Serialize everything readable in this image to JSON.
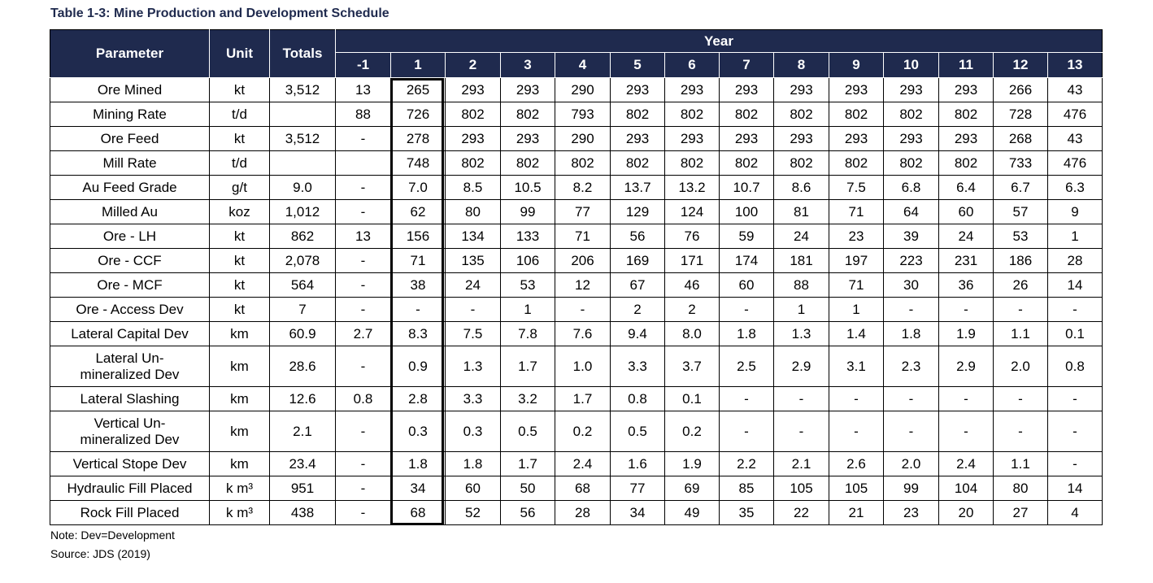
{
  "title": "Table 1-3: Mine Production and Development Schedule",
  "headers": {
    "parameter": "Parameter",
    "unit": "Unit",
    "totals": "Totals",
    "year": "Year",
    "years": [
      "-1",
      "1",
      "2",
      "3",
      "4",
      "5",
      "6",
      "7",
      "8",
      "9",
      "10",
      "11",
      "12",
      "13"
    ]
  },
  "rows": [
    {
      "parameter": "Ore Mined",
      "unit": "kt",
      "totals": "3,512",
      "values": [
        "13",
        "265",
        "293",
        "293",
        "290",
        "293",
        "293",
        "293",
        "293",
        "293",
        "293",
        "293",
        "266",
        "43"
      ]
    },
    {
      "parameter": "Mining Rate",
      "unit": "t/d",
      "totals": "",
      "values": [
        "88",
        "726",
        "802",
        "802",
        "793",
        "802",
        "802",
        "802",
        "802",
        "802",
        "802",
        "802",
        "728",
        "476"
      ]
    },
    {
      "parameter": "Ore Feed",
      "unit": "kt",
      "totals": "3,512",
      "values": [
        "-",
        "278",
        "293",
        "293",
        "290",
        "293",
        "293",
        "293",
        "293",
        "293",
        "293",
        "293",
        "268",
        "43"
      ]
    },
    {
      "parameter": "Mill Rate",
      "unit": "t/d",
      "totals": "",
      "values": [
        "",
        "748",
        "802",
        "802",
        "802",
        "802",
        "802",
        "802",
        "802",
        "802",
        "802",
        "802",
        "733",
        "476"
      ]
    },
    {
      "parameter": "Au Feed Grade",
      "unit": "g/t",
      "totals": "9.0",
      "values": [
        "-",
        "7.0",
        "8.5",
        "10.5",
        "8.2",
        "13.7",
        "13.2",
        "10.7",
        "8.6",
        "7.5",
        "6.8",
        "6.4",
        "6.7",
        "6.3"
      ]
    },
    {
      "parameter": "Milled Au",
      "unit": "koz",
      "totals": "1,012",
      "values": [
        "-",
        "62",
        "80",
        "99",
        "77",
        "129",
        "124",
        "100",
        "81",
        "71",
        "64",
        "60",
        "57",
        "9"
      ]
    },
    {
      "parameter": "Ore - LH",
      "unit": "kt",
      "totals": "862",
      "values": [
        "13",
        "156",
        "134",
        "133",
        "71",
        "56",
        "76",
        "59",
        "24",
        "23",
        "39",
        "24",
        "53",
        "1"
      ]
    },
    {
      "parameter": "Ore - CCF",
      "unit": "kt",
      "totals": "2,078",
      "values": [
        "-",
        "71",
        "135",
        "106",
        "206",
        "169",
        "171",
        "174",
        "181",
        "197",
        "223",
        "231",
        "186",
        "28"
      ]
    },
    {
      "parameter": "Ore - MCF",
      "unit": "kt",
      "totals": "564",
      "values": [
        "-",
        "38",
        "24",
        "53",
        "12",
        "67",
        "46",
        "60",
        "88",
        "71",
        "30",
        "36",
        "26",
        "14"
      ]
    },
    {
      "parameter": "Ore - Access Dev",
      "unit": "kt",
      "totals": "7",
      "values": [
        "-",
        "-",
        "-",
        "1",
        "-",
        "2",
        "2",
        "-",
        "1",
        "1",
        "-",
        "-",
        "-",
        "-"
      ]
    },
    {
      "parameter": "Lateral Capital Dev",
      "unit": "km",
      "totals": "60.9",
      "values": [
        "2.7",
        "8.3",
        "7.5",
        "7.8",
        "7.6",
        "9.4",
        "8.0",
        "1.8",
        "1.3",
        "1.4",
        "1.8",
        "1.9",
        "1.1",
        "0.1"
      ]
    },
    {
      "parameter": "Lateral Un-\nmineralized Dev",
      "unit": "km",
      "totals": "28.6",
      "values": [
        "-",
        "0.9",
        "1.3",
        "1.7",
        "1.0",
        "3.3",
        "3.7",
        "2.5",
        "2.9",
        "3.1",
        "2.3",
        "2.9",
        "2.0",
        "0.8"
      ]
    },
    {
      "parameter": "Lateral Slashing",
      "unit": "km",
      "totals": "12.6",
      "values": [
        "0.8",
        "2.8",
        "3.3",
        "3.2",
        "1.7",
        "0.8",
        "0.1",
        "-",
        "-",
        "-",
        "-",
        "-",
        "-",
        "-"
      ]
    },
    {
      "parameter": "Vertical Un-\nmineralized Dev",
      "unit": "km",
      "totals": "2.1",
      "values": [
        "-",
        "0.3",
        "0.3",
        "0.5",
        "0.2",
        "0.5",
        "0.2",
        "-",
        "-",
        "-",
        "-",
        "-",
        "-",
        "-"
      ]
    },
    {
      "parameter": "Vertical Stope Dev",
      "unit": "km",
      "totals": "23.4",
      "values": [
        "-",
        "1.8",
        "1.8",
        "1.7",
        "2.4",
        "1.6",
        "1.9",
        "2.2",
        "2.1",
        "2.6",
        "2.0",
        "2.4",
        "1.1",
        "-"
      ]
    },
    {
      "parameter": "Hydraulic Fill Placed",
      "unit": "k m³",
      "totals": "951",
      "values": [
        "-",
        "34",
        "60",
        "50",
        "68",
        "77",
        "69",
        "85",
        "105",
        "105",
        "99",
        "104",
        "80",
        "14"
      ]
    },
    {
      "parameter": "Rock Fill Placed",
      "unit": "k m³",
      "totals": "438",
      "values": [
        "-",
        "68",
        "52",
        "56",
        "28",
        "34",
        "49",
        "35",
        "22",
        "21",
        "23",
        "20",
        "27",
        "4"
      ]
    }
  ],
  "notes": {
    "note": "Note: Dev=Development",
    "source": "Source: JDS (2019)"
  },
  "colors": {
    "header_bg": "#1f2a4e",
    "header_text": "#ffffff",
    "title": "#1f2a4e"
  }
}
